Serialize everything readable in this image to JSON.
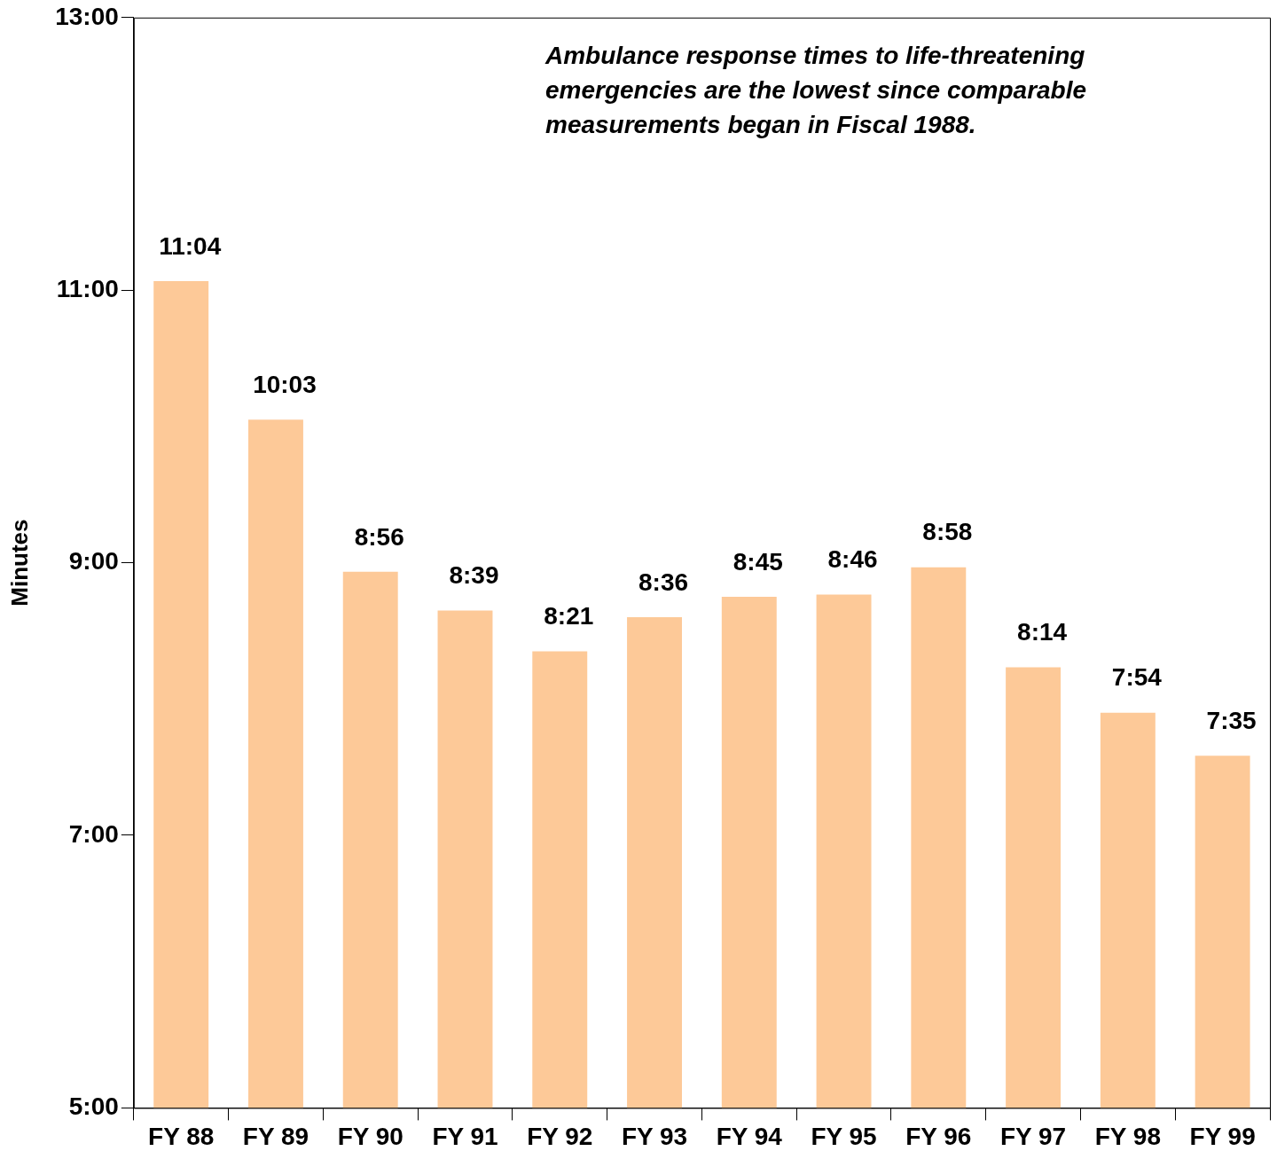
{
  "chart_data": {
    "type": "bar",
    "ylabel": "Minutes",
    "annotations": [
      "Ambulance response times to life-threatening emergencies are the lowest since comparable measurements began in Fiscal 1988."
    ],
    "categories": [
      "FY 88",
      "FY 89",
      "FY 90",
      "FY 91",
      "FY 92",
      "FY 93",
      "FY 94",
      "FY 95",
      "FY 96",
      "FY 97",
      "FY 98",
      "FY 99"
    ],
    "values": [
      11.0667,
      10.05,
      8.9333,
      8.65,
      8.35,
      8.6,
      8.75,
      8.7667,
      8.9667,
      8.2333,
      7.9,
      7.5833
    ],
    "value_labels": [
      "11:04",
      "10:03",
      "8:56",
      "8:39",
      "8:21",
      "8:36",
      "8:45",
      "8:46",
      "8:58",
      "8:14",
      "7:54",
      "7:35"
    ],
    "color": "#fdc998",
    "ylim": [
      5,
      13
    ],
    "yticks": [
      {
        "value": 5,
        "label": "5:00"
      },
      {
        "value": 7,
        "label": "7:00"
      },
      {
        "value": 9,
        "label": "9:00"
      },
      {
        "value": 11,
        "label": "11:00"
      },
      {
        "value": 13,
        "label": "13:00"
      }
    ],
    "grid": false,
    "legend": false
  }
}
